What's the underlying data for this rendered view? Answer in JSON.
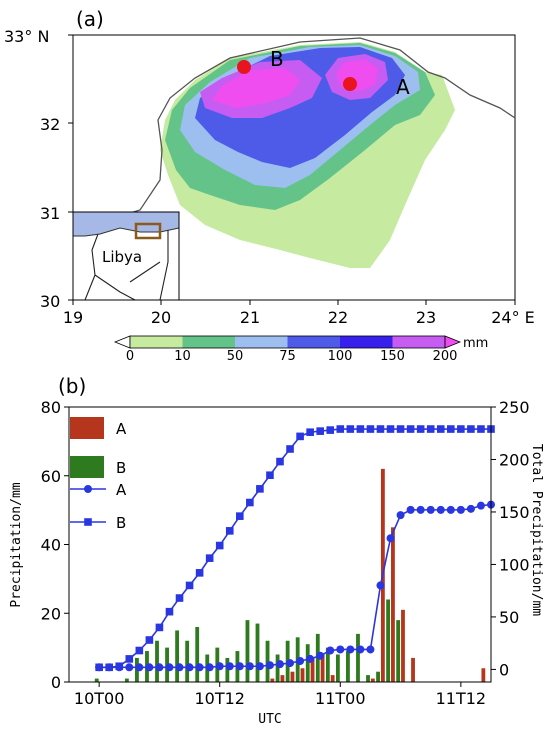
{
  "panel_a": {
    "label": "(a)",
    "lat_ticks": [
      "33° N",
      "32",
      "31",
      "30"
    ],
    "lon_ticks": [
      "19",
      "20",
      "21",
      "22",
      "23",
      "24° E"
    ],
    "stations": [
      {
        "name": "B",
        "lon": 20.95,
        "lat": 32.64
      },
      {
        "name": "A",
        "lon": 22.15,
        "lat": 32.46
      }
    ],
    "inset_label": "Libya",
    "colorbar": {
      "ticks": [
        "0",
        "10",
        "50",
        "75",
        "100",
        "150",
        "200"
      ],
      "unit": "mm",
      "colors": [
        "#ffffff",
        "#c5eaa0",
        "#63c389",
        "#9cbff0",
        "#4d5be8",
        "#3820ec",
        "#c75cf2",
        "#f04df0"
      ]
    }
  },
  "panel_b": {
    "label": "(b)",
    "xlabel": "UTC",
    "ylabel_left": "Precipitation/mm",
    "ylabel_right": "Total Precipitation/mm",
    "x_ticks": [
      "10T00",
      "10T12",
      "11T00",
      "11T12"
    ],
    "y_left_ticks": [
      "0",
      "20",
      "40",
      "60",
      "80"
    ],
    "y_right_ticks": [
      "0",
      "50",
      "100",
      "150",
      "200",
      "250"
    ],
    "legend": [
      {
        "label": "A",
        "kind": "bar",
        "color": "#b5361c"
      },
      {
        "label": "B",
        "kind": "bar",
        "color": "#2e7a1e"
      },
      {
        "label": "A",
        "kind": "line-circle",
        "color": "#2a36e0"
      },
      {
        "label": "B",
        "kind": "line-square",
        "color": "#2a36e0"
      }
    ]
  },
  "chart_data": {
    "type": "bar",
    "x_units": "hours since 10T00 UTC",
    "ylim_left": [
      0,
      80
    ],
    "ylim_right": [
      -12,
      250
    ],
    "xlim": [
      -3,
      39
    ],
    "series": [
      {
        "name": "A",
        "kind": "bar",
        "axis": "left",
        "values": [
          0,
          0,
          0,
          0,
          0,
          0,
          0,
          0,
          0,
          0,
          0,
          0,
          0,
          0,
          0,
          0,
          0,
          1,
          2,
          3,
          4,
          7,
          8,
          2,
          0,
          0,
          0,
          1,
          62,
          45,
          21,
          7,
          0,
          0,
          0,
          0,
          0,
          0,
          4,
          0
        ]
      },
      {
        "name": "B",
        "kind": "bar",
        "axis": "left",
        "values": [
          1,
          0,
          0,
          1,
          7,
          9,
          12,
          10,
          15,
          12,
          16,
          8,
          10,
          7,
          9,
          18,
          17,
          12,
          8,
          12,
          13,
          11,
          14,
          10,
          8,
          9,
          14,
          2,
          3,
          24,
          18,
          0,
          0,
          0,
          0,
          0,
          0,
          0,
          0,
          0
        ]
      },
      {
        "name": "A",
        "kind": "line",
        "marker": "circle",
        "axis": "right",
        "values": [
          2,
          2,
          2,
          2,
          2,
          2,
          2,
          2,
          2,
          2,
          2,
          2,
          3,
          3,
          3,
          3,
          3,
          4,
          5,
          6,
          8,
          10,
          13,
          18,
          19,
          19,
          19,
          19,
          80,
          125,
          147,
          152,
          152,
          152,
          152,
          152,
          152,
          153,
          156,
          157
        ]
      },
      {
        "name": "B",
        "kind": "line",
        "marker": "square",
        "axis": "right",
        "values": [
          2,
          2,
          3,
          10,
          18,
          28,
          40,
          55,
          68,
          80,
          92,
          106,
          118,
          132,
          146,
          159,
          172,
          185,
          198,
          210,
          222,
          226,
          227,
          228,
          229,
          229,
          229,
          229,
          229,
          229,
          229,
          229,
          229,
          229,
          229,
          229,
          229,
          229,
          229,
          229
        ]
      }
    ]
  }
}
